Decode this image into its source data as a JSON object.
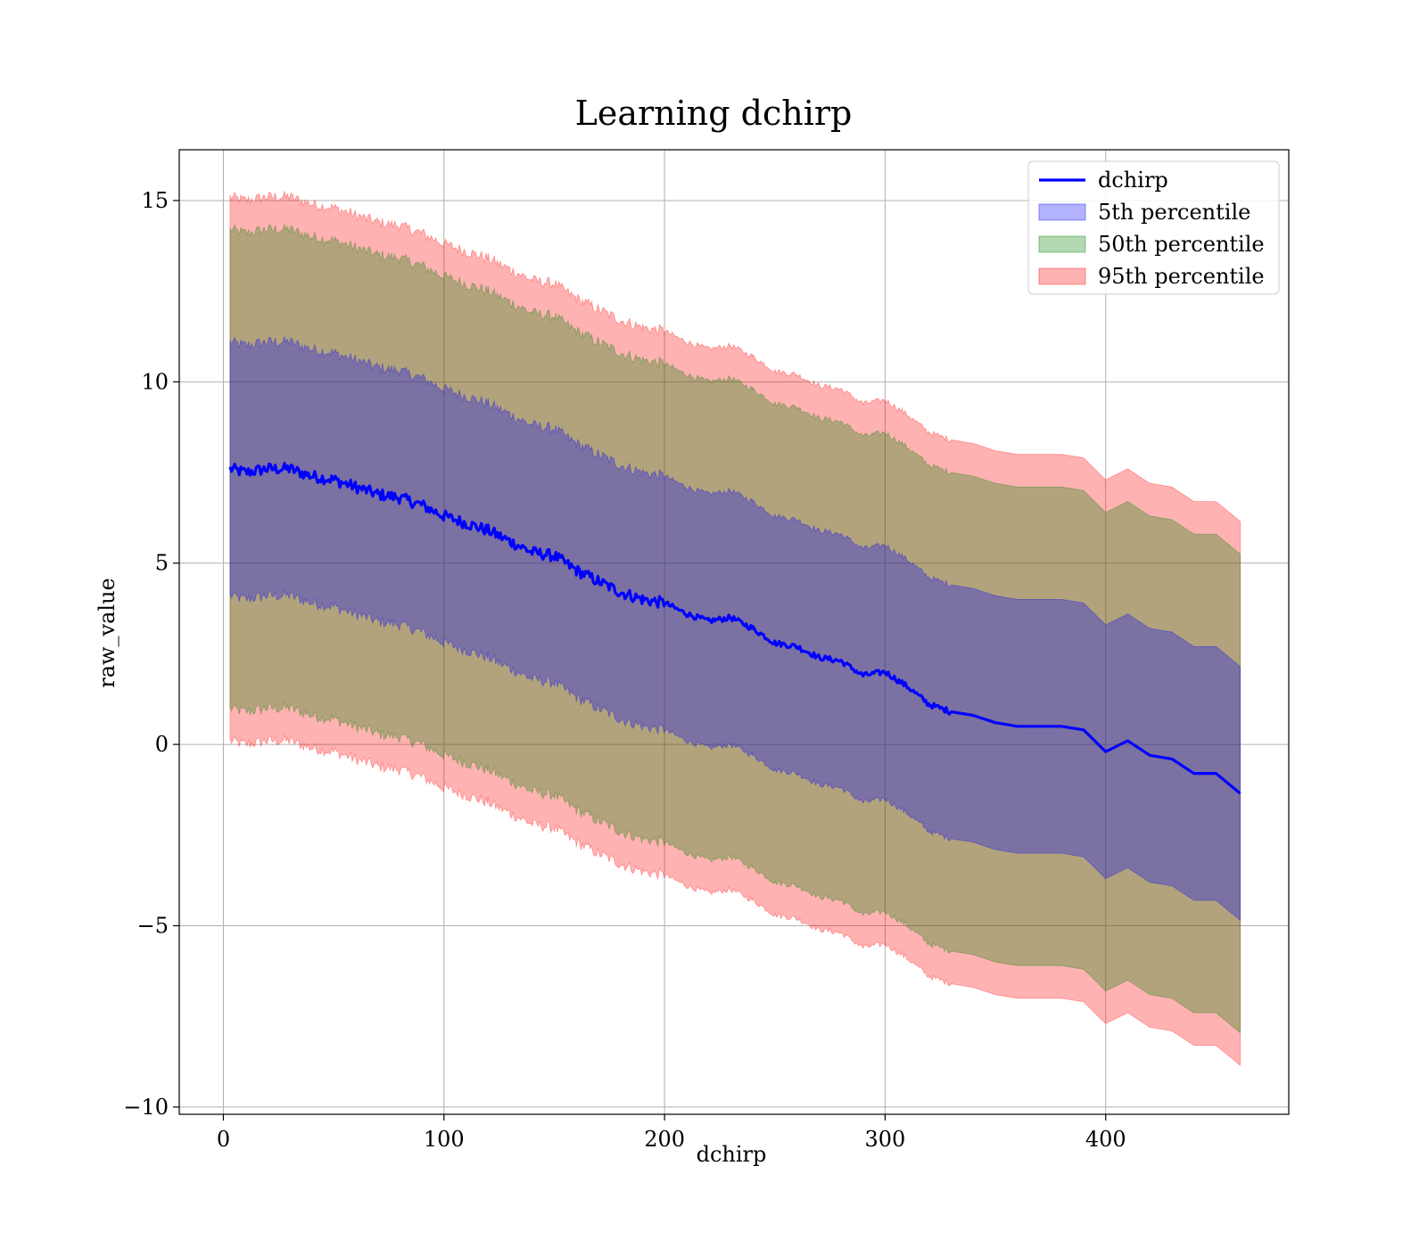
{
  "chart_data": {
    "type": "area",
    "title": "Learning dchirp",
    "xlabel": "dchirp",
    "ylabel": "raw_value",
    "xlim": [
      -20,
      483
    ],
    "ylim": [
      -10.2,
      16.4
    ],
    "xticks": [
      0,
      100,
      200,
      300,
      400
    ],
    "xtick_labels": [
      "0",
      "100",
      "200",
      "300",
      "400"
    ],
    "yticks": [
      15,
      10,
      5,
      0,
      -5,
      -10
    ],
    "ytick_labels": [
      "15",
      "10",
      "5",
      "0",
      "−5",
      "−10"
    ],
    "grid": true,
    "legend_position": "top-right",
    "colors": {
      "line": "#0000ff",
      "band_5th": "#0000ff",
      "band_50th": "#008000",
      "band_95th": "#ff0000",
      "grid": "#b0b0b0",
      "axes": "#000000"
    },
    "legend": [
      {
        "label": "dchirp",
        "kind": "line",
        "color": "#0000ff"
      },
      {
        "label": "5th percentile",
        "kind": "patch",
        "color": "#0000ff"
      },
      {
        "label": "50th percentile",
        "kind": "patch",
        "color": "#008000"
      },
      {
        "label": "95th percentile",
        "kind": "patch",
        "color": "#ff0000"
      }
    ],
    "series": [
      {
        "name": "dchirp",
        "x": [
          3,
          10,
          20,
          30,
          40,
          50,
          60,
          70,
          80,
          90,
          100,
          110,
          120,
          130,
          140,
          150,
          160,
          170,
          180,
          190,
          200,
          210,
          220,
          230,
          240,
          250,
          260,
          270,
          280,
          290,
          300,
          310,
          320,
          330,
          340,
          350,
          360,
          370,
          380,
          390,
          400,
          410,
          420,
          430,
          440,
          450,
          461
        ],
        "y": [
          7.6,
          7.5,
          7.6,
          7.6,
          7.4,
          7.3,
          7.1,
          6.9,
          6.8,
          6.6,
          6.3,
          6.1,
          5.9,
          5.6,
          5.3,
          5.2,
          4.8,
          4.5,
          4.2,
          4.0,
          3.9,
          3.6,
          3.4,
          3.5,
          3.2,
          2.8,
          2.7,
          2.4,
          2.3,
          1.9,
          2.0,
          1.6,
          1.1,
          0.9,
          0.8,
          0.6,
          0.5,
          0.5,
          0.5,
          0.4,
          -0.2,
          0.1,
          -0.3,
          -0.4,
          -0.8,
          -0.8,
          -1.35
        ]
      }
    ],
    "bands": [
      {
        "name": "95th percentile",
        "offset": 7.5
      },
      {
        "name": "50th percentile",
        "offset": 6.6
      },
      {
        "name": "5th percentile",
        "offset": 3.5
      }
    ]
  }
}
